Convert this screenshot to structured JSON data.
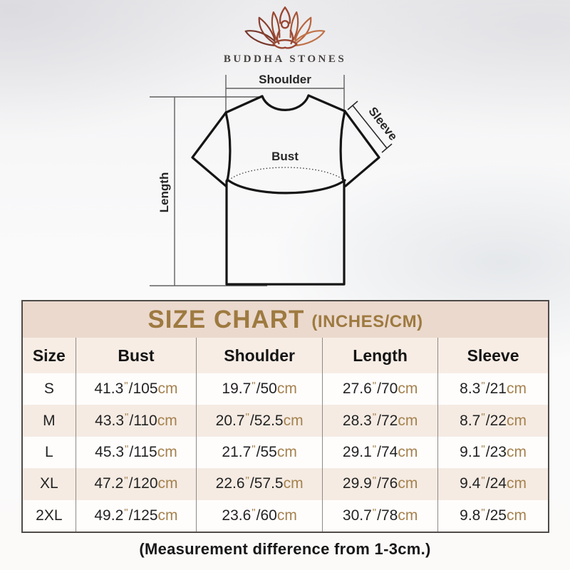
{
  "brand": {
    "name": "BUDDHA STONES"
  },
  "diagram": {
    "shoulder_label": "Shoulder",
    "sleeve_label": "Sleeve",
    "bust_label": "Bust",
    "length_label": "Length"
  },
  "size_chart": {
    "title": "SIZE CHART",
    "subtitle": "(INCHES/CM)",
    "columns": [
      "Size",
      "Bust",
      "Shoulder",
      "Length",
      "Sleeve"
    ],
    "units": {
      "inch": "\"",
      "slash": "/",
      "cm": "cm"
    },
    "rows": [
      {
        "size": "S",
        "bust": [
          "41.3",
          "105"
        ],
        "shoulder": [
          "19.7",
          "50"
        ],
        "length": [
          "27.6",
          "70"
        ],
        "sleeve": [
          "8.3",
          "21"
        ]
      },
      {
        "size": "M",
        "bust": [
          "43.3",
          "110"
        ],
        "shoulder": [
          "20.7",
          "52.5"
        ],
        "length": [
          "28.3",
          "72"
        ],
        "sleeve": [
          "8.7",
          "22"
        ]
      },
      {
        "size": "L",
        "bust": [
          "45.3",
          "115"
        ],
        "shoulder": [
          "21.7",
          "55"
        ],
        "length": [
          "29.1",
          "74"
        ],
        "sleeve": [
          "9.1",
          "23"
        ]
      },
      {
        "size": "XL",
        "bust": [
          "47.2",
          "120"
        ],
        "shoulder": [
          "22.6",
          "57.5"
        ],
        "length": [
          "29.9",
          "76"
        ],
        "sleeve": [
          "9.4",
          "24"
        ]
      },
      {
        "size": "2XL",
        "bust": [
          "49.2",
          "125"
        ],
        "shoulder": [
          "23.6",
          "60"
        ],
        "length": [
          "30.7",
          "78"
        ],
        "sleeve": [
          "9.8",
          "25"
        ]
      }
    ]
  },
  "footer": {
    "note": "(Measurement difference from 1-3cm.)"
  },
  "colors": {
    "accent_gold": "#9e7a40",
    "unit_tan": "#a5824e",
    "banner_bg": "#ebd9ce",
    "header_row_bg": "#f7ede5",
    "stripe_bg": "#f5ebe3",
    "table_border": "#4e4b48",
    "logo_maroon": "#7d3a2b",
    "logo_copper": "#c07247"
  }
}
